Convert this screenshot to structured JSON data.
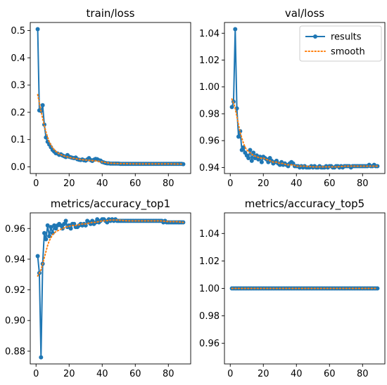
{
  "chart_data": [
    {
      "type": "line",
      "title": "train/loss",
      "xlim": [
        -3.5,
        93.5
      ],
      "ylim": [
        -0.0245,
        0.5295
      ],
      "xticks": [
        0,
        20,
        40,
        60,
        80
      ],
      "yticks": [
        0.0,
        0.1,
        0.2,
        0.3,
        0.4,
        0.5
      ],
      "ytick_labels": [
        "0.0",
        "0.1",
        "0.2",
        "0.3",
        "0.4",
        "0.5"
      ],
      "legend": false,
      "series": [
        {
          "name": "results",
          "x": [
            1,
            2,
            3,
            4,
            5,
            6,
            7,
            8,
            9,
            10,
            11,
            12,
            13,
            14,
            15,
            16,
            17,
            18,
            19,
            20,
            21,
            22,
            23,
            24,
            25,
            26,
            27,
            28,
            29,
            30,
            31,
            32,
            33,
            34,
            35,
            36,
            37,
            38,
            39,
            40,
            41,
            42,
            43,
            44,
            45,
            46,
            47,
            48,
            49,
            50,
            51,
            52,
            53,
            54,
            55,
            56,
            57,
            58,
            59,
            60,
            61,
            62,
            63,
            64,
            65,
            66,
            67,
            68,
            69,
            70,
            71,
            72,
            73,
            74,
            75,
            76,
            77,
            78,
            79,
            80,
            81,
            82,
            83,
            84,
            85,
            86,
            87,
            88,
            89
          ],
          "y": [
            0.505,
            0.207,
            0.205,
            0.226,
            0.155,
            0.108,
            0.092,
            0.082,
            0.072,
            0.062,
            0.056,
            0.05,
            0.049,
            0.044,
            0.046,
            0.042,
            0.039,
            0.036,
            0.043,
            0.037,
            0.035,
            0.033,
            0.032,
            0.034,
            0.028,
            0.026,
            0.025,
            0.027,
            0.024,
            0.023,
            0.027,
            0.032,
            0.025,
            0.022,
            0.026,
            0.029,
            0.028,
            0.024,
            0.023,
            0.018,
            0.016,
            0.014,
            0.013,
            0.013,
            0.012,
            0.012,
            0.012,
            0.012,
            0.012,
            0.012,
            0.011,
            0.011,
            0.011,
            0.011,
            0.011,
            0.011,
            0.011,
            0.011,
            0.011,
            0.011,
            0.011,
            0.011,
            0.011,
            0.011,
            0.011,
            0.011,
            0.011,
            0.011,
            0.011,
            0.011,
            0.011,
            0.011,
            0.011,
            0.011,
            0.011,
            0.011,
            0.011,
            0.011,
            0.011,
            0.011,
            0.011,
            0.011,
            0.011,
            0.011,
            0.011,
            0.011,
            0.011,
            0.011,
            0.01
          ]
        },
        {
          "name": "smooth",
          "x": [
            1,
            2,
            3,
            4,
            5,
            6,
            7,
            8,
            9,
            10,
            11,
            12,
            13,
            14,
            15,
            16,
            18,
            20,
            22,
            24,
            26,
            28,
            30,
            32,
            34,
            36,
            38,
            40,
            42,
            44,
            46,
            50,
            55,
            60,
            65,
            70,
            75,
            80,
            85,
            89
          ],
          "y": [
            0.265,
            0.235,
            0.205,
            0.178,
            0.152,
            0.128,
            0.108,
            0.092,
            0.08,
            0.07,
            0.063,
            0.057,
            0.052,
            0.048,
            0.045,
            0.042,
            0.038,
            0.035,
            0.032,
            0.03,
            0.028,
            0.026,
            0.025,
            0.024,
            0.023,
            0.022,
            0.02,
            0.018,
            0.016,
            0.014,
            0.013,
            0.012,
            0.0115,
            0.011,
            0.011,
            0.011,
            0.011,
            0.011,
            0.0105,
            0.01
          ]
        }
      ]
    },
    {
      "type": "line",
      "title": "val/loss",
      "xlim": [
        -3.5,
        93.5
      ],
      "ylim": [
        0.9355,
        1.048
      ],
      "xticks": [
        0,
        20,
        40,
        60,
        80
      ],
      "yticks": [
        0.94,
        0.96,
        0.98,
        1.0,
        1.02,
        1.04
      ],
      "ytick_labels": [
        "0.94",
        "0.96",
        "0.98",
        "1.00",
        "1.02",
        "1.04"
      ],
      "legend": true,
      "legend_loc": "upper right",
      "series": [
        {
          "name": "results",
          "x": [
            1,
            2,
            3,
            4,
            5,
            6,
            7,
            8,
            9,
            10,
            11,
            12,
            13,
            14,
            15,
            16,
            17,
            18,
            19,
            20,
            21,
            22,
            23,
            24,
            25,
            26,
            27,
            28,
            29,
            30,
            31,
            32,
            33,
            34,
            35,
            36,
            37,
            38,
            39,
            40,
            41,
            42,
            43,
            44,
            45,
            46,
            47,
            48,
            49,
            50,
            51,
            52,
            53,
            54,
            55,
            56,
            57,
            58,
            59,
            60,
            61,
            62,
            63,
            64,
            65,
            66,
            67,
            68,
            69,
            70,
            71,
            72,
            73,
            74,
            75,
            76,
            77,
            78,
            79,
            80,
            81,
            82,
            83,
            84,
            85,
            86,
            87,
            88,
            89
          ],
          "y": [
            0.985,
            0.989,
            1.043,
            0.984,
            0.963,
            0.967,
            0.953,
            0.955,
            0.951,
            0.949,
            0.947,
            0.953,
            0.945,
            0.951,
            0.947,
            0.949,
            0.946,
            0.948,
            0.944,
            0.948,
            0.947,
            0.946,
            0.944,
            0.947,
            0.945,
            0.943,
            0.944,
            0.945,
            0.943,
            0.942,
            0.944,
            0.942,
            0.943,
            0.942,
            0.941,
            0.943,
            0.944,
            0.943,
            0.941,
            0.941,
            0.941,
            0.94,
            0.941,
            0.94,
            0.941,
            0.94,
            0.94,
            0.94,
            0.941,
            0.94,
            0.941,
            0.94,
            0.94,
            0.941,
            0.94,
            0.94,
            0.94,
            0.941,
            0.94,
            0.941,
            0.941,
            0.94,
            0.94,
            0.941,
            0.941,
            0.94,
            0.941,
            0.94,
            0.941,
            0.941,
            0.941,
            0.941,
            0.94,
            0.941,
            0.941,
            0.941,
            0.941,
            0.941,
            0.941,
            0.941,
            0.941,
            0.941,
            0.941,
            0.942,
            0.941,
            0.941,
            0.942,
            0.941,
            0.941
          ]
        },
        {
          "name": "smooth",
          "x": [
            1,
            2,
            3,
            4,
            5,
            6,
            7,
            8,
            9,
            10,
            12,
            14,
            16,
            18,
            20,
            22,
            24,
            26,
            28,
            30,
            32,
            34,
            36,
            38,
            40,
            42,
            45,
            50,
            55,
            60,
            65,
            70,
            75,
            80,
            85,
            89
          ],
          "y": [
            0.991,
            0.988,
            0.984,
            0.978,
            0.972,
            0.966,
            0.962,
            0.958,
            0.955,
            0.953,
            0.951,
            0.949,
            0.948,
            0.947,
            0.947,
            0.946,
            0.945,
            0.944,
            0.944,
            0.943,
            0.943,
            0.942,
            0.942,
            0.942,
            0.941,
            0.941,
            0.941,
            0.9405,
            0.9405,
            0.9405,
            0.9405,
            0.941,
            0.941,
            0.941,
            0.941,
            0.941
          ]
        }
      ]
    },
    {
      "type": "line",
      "title": "metrics/accuracy_top1",
      "xlim": [
        -3.5,
        93.5
      ],
      "ylim": [
        0.8717,
        0.9702
      ],
      "xticks": [
        0,
        20,
        40,
        60,
        80
      ],
      "yticks": [
        0.88,
        0.9,
        0.92,
        0.94,
        0.96
      ],
      "ytick_labels": [
        "0.88",
        "0.90",
        "0.92",
        "0.94",
        "0.96"
      ],
      "legend": false,
      "series": [
        {
          "name": "results",
          "x": [
            1,
            2,
            3,
            4,
            5,
            6,
            7,
            8,
            9,
            10,
            11,
            12,
            13,
            14,
            15,
            16,
            17,
            18,
            19,
            20,
            21,
            22,
            23,
            24,
            25,
            26,
            27,
            28,
            29,
            30,
            31,
            32,
            33,
            34,
            35,
            36,
            37,
            38,
            39,
            40,
            41,
            42,
            43,
            44,
            45,
            46,
            47,
            48,
            49,
            50,
            51,
            52,
            53,
            54,
            55,
            56,
            57,
            58,
            59,
            60,
            61,
            62,
            63,
            64,
            65,
            66,
            67,
            68,
            69,
            70,
            71,
            72,
            73,
            74,
            75,
            76,
            77,
            78,
            79,
            80,
            81,
            82,
            83,
            84,
            85,
            86,
            87,
            88,
            89
          ],
          "y": [
            0.942,
            0.931,
            0.876,
            0.937,
            0.957,
            0.953,
            0.962,
            0.955,
            0.961,
            0.957,
            0.962,
            0.96,
            0.962,
            0.963,
            0.962,
            0.96,
            0.963,
            0.965,
            0.961,
            0.962,
            0.96,
            0.963,
            0.963,
            0.961,
            0.961,
            0.962,
            0.963,
            0.962,
            0.963,
            0.962,
            0.965,
            0.964,
            0.963,
            0.965,
            0.963,
            0.964,
            0.966,
            0.964,
            0.965,
            0.966,
            0.966,
            0.965,
            0.964,
            0.966,
            0.965,
            0.966,
            0.965,
            0.966,
            0.965,
            0.965,
            0.965,
            0.965,
            0.965,
            0.965,
            0.965,
            0.965,
            0.965,
            0.965,
            0.965,
            0.965,
            0.965,
            0.965,
            0.965,
            0.965,
            0.965,
            0.965,
            0.965,
            0.965,
            0.965,
            0.965,
            0.965,
            0.965,
            0.965,
            0.965,
            0.965,
            0.965,
            0.964,
            0.965,
            0.964,
            0.964,
            0.964,
            0.964,
            0.964,
            0.964,
            0.964,
            0.964,
            0.964,
            0.964,
            0.964
          ]
        },
        {
          "name": "smooth",
          "x": [
            1,
            2,
            3,
            4,
            5,
            6,
            7,
            8,
            9,
            10,
            12,
            14,
            16,
            18,
            20,
            22,
            24,
            26,
            28,
            30,
            32,
            34,
            36,
            38,
            40,
            42,
            45,
            50,
            55,
            60,
            65,
            70,
            75,
            80,
            85,
            89
          ],
          "y": [
            0.929,
            0.931,
            0.933,
            0.937,
            0.941,
            0.945,
            0.949,
            0.952,
            0.954,
            0.956,
            0.958,
            0.959,
            0.96,
            0.961,
            0.9615,
            0.962,
            0.962,
            0.9625,
            0.963,
            0.963,
            0.9635,
            0.964,
            0.964,
            0.9645,
            0.965,
            0.965,
            0.9655,
            0.9655,
            0.965,
            0.965,
            0.965,
            0.965,
            0.965,
            0.9645,
            0.9645,
            0.964
          ]
        }
      ]
    },
    {
      "type": "line",
      "title": "metrics/accuracy_top5",
      "xlim": [
        -3.5,
        93.5
      ],
      "ylim": [
        0.945,
        1.055
      ],
      "xticks": [
        0,
        20,
        40,
        60,
        80
      ],
      "yticks": [
        0.96,
        0.98,
        1.0,
        1.02,
        1.04
      ],
      "ytick_labels": [
        "0.96",
        "0.98",
        "1.00",
        "1.02",
        "1.04"
      ],
      "legend": false,
      "series": [
        {
          "name": "results",
          "x": [
            1,
            2,
            3,
            4,
            5,
            6,
            7,
            8,
            9,
            10,
            11,
            12,
            13,
            14,
            15,
            16,
            17,
            18,
            19,
            20,
            21,
            22,
            23,
            24,
            25,
            26,
            27,
            28,
            29,
            30,
            31,
            32,
            33,
            34,
            35,
            36,
            37,
            38,
            39,
            40,
            41,
            42,
            43,
            44,
            45,
            46,
            47,
            48,
            49,
            50,
            51,
            52,
            53,
            54,
            55,
            56,
            57,
            58,
            59,
            60,
            61,
            62,
            63,
            64,
            65,
            66,
            67,
            68,
            69,
            70,
            71,
            72,
            73,
            74,
            75,
            76,
            77,
            78,
            79,
            80,
            81,
            82,
            83,
            84,
            85,
            86,
            87,
            88,
            89
          ],
          "y": [
            1,
            1,
            1,
            1,
            1,
            1,
            1,
            1,
            1,
            1,
            1,
            1,
            1,
            1,
            1,
            1,
            1,
            1,
            1,
            1,
            1,
            1,
            1,
            1,
            1,
            1,
            1,
            1,
            1,
            1,
            1,
            1,
            1,
            1,
            1,
            1,
            1,
            1,
            1,
            1,
            1,
            1,
            1,
            1,
            1,
            1,
            1,
            1,
            1,
            1,
            1,
            1,
            1,
            1,
            1,
            1,
            1,
            1,
            1,
            1,
            1,
            1,
            1,
            1,
            1,
            1,
            1,
            1,
            1,
            1,
            1,
            1,
            1,
            1,
            1,
            1,
            1,
            1,
            1,
            1,
            1,
            1,
            1,
            1,
            1,
            1,
            1,
            1,
            1
          ]
        },
        {
          "name": "smooth",
          "x": [
            1,
            89
          ],
          "y": [
            1,
            1
          ]
        }
      ]
    }
  ],
  "colors": {
    "results": "#1f77b4",
    "smooth": "#ff7f0e"
  }
}
